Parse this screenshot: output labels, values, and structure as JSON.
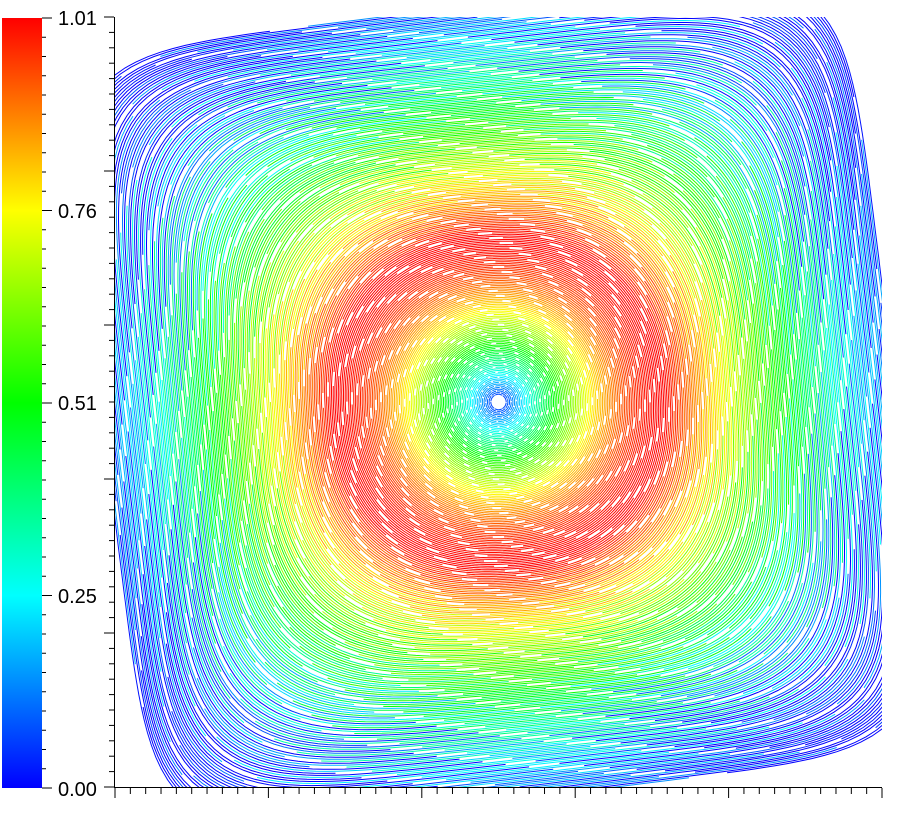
{
  "chart_data": {
    "type": "streamline",
    "title": "",
    "xlabel": "",
    "ylabel": "",
    "colorbar": {
      "range": [
        0.0,
        1.01
      ],
      "tick_labels": [
        "1.01",
        "0.76",
        "0.51",
        "0.25",
        "0.00"
      ],
      "tick_values": [
        1.01,
        0.76,
        0.51,
        0.25,
        0.0
      ],
      "colormap": [
        "#0000ff",
        "#00ffff",
        "#00ff00",
        "#ffff00",
        "#ff0000"
      ]
    },
    "field": {
      "description_type": "vortex",
      "vortex_center": [
        0.5,
        0.5
      ],
      "center_value": 0.0,
      "peak_value": 1.01,
      "peak_radius": 0.22,
      "corner_value": 0.0
    },
    "x_axis": {
      "range": [
        0,
        1
      ],
      "tick_labels": []
    },
    "y_axis": {
      "range": [
        0,
        1
      ],
      "tick_labels": []
    }
  }
}
